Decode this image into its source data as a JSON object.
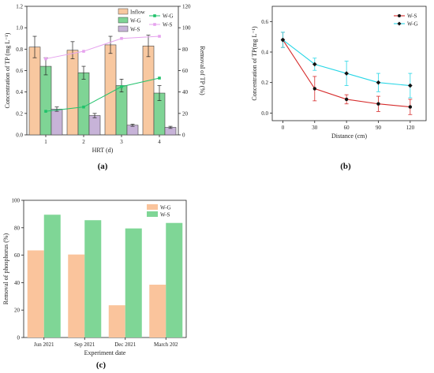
{
  "panel_labels": [
    "(a)",
    "(b)",
    "(c)"
  ],
  "colors": {
    "inflow": "#f8c8a0",
    "wg": "#7fd495",
    "ws": "#c7b3d8",
    "line_wg": "#21c26b",
    "line_ws": "#e6a3ee",
    "b_ws": "#d62b2b",
    "b_wg": "#27d6e6",
    "c_wg": "#fac49c",
    "c_ws": "#7fd696"
  },
  "chart_data": [
    {
      "type": "bar",
      "panel": "(a)",
      "title": "",
      "xlabel": "HRT (d)",
      "ylabel": "Concentration of TP (mg L⁻¹)",
      "y2label": "Removal of TP (%)",
      "categories": [
        "1",
        "2",
        "3",
        "4"
      ],
      "ylim": [
        0,
        1.2
      ],
      "yticks": [
        "0.0",
        "0.2",
        "0.4",
        "0.6",
        "0.8",
        "1.0",
        "1.2"
      ],
      "y2lim": [
        0,
        120
      ],
      "y2ticks": [
        "0",
        "20",
        "40",
        "60",
        "80",
        "100",
        "120"
      ],
      "series": [
        {
          "name": "Inflow",
          "values": [
            0.82,
            0.79,
            0.84,
            0.83
          ],
          "errors": [
            0.1,
            0.08,
            0.08,
            0.1
          ]
        },
        {
          "name": "W-G",
          "values": [
            0.64,
            0.58,
            0.46,
            0.39
          ],
          "errors": [
            0.08,
            0.06,
            0.06,
            0.07
          ]
        },
        {
          "name": "W-S",
          "values": [
            0.24,
            0.18,
            0.09,
            0.07
          ],
          "errors": [
            0.02,
            0.02,
            0.01,
            0.01
          ]
        }
      ],
      "lines": [
        {
          "name": "W-G",
          "values": [
            22,
            26,
            45,
            53
          ]
        },
        {
          "name": "W-S",
          "values": [
            71,
            78,
            90,
            92
          ]
        }
      ],
      "legend": "top-right"
    },
    {
      "type": "line",
      "panel": "(b)",
      "title": "",
      "xlabel": "Distance (cm)",
      "ylabel": "Concentration of TP(mg L⁻¹)",
      "x": [
        0,
        30,
        60,
        90,
        120
      ],
      "xticks": [
        "0",
        "30",
        "60",
        "90",
        "120"
      ],
      "xlim": [
        -10,
        135
      ],
      "ylim": [
        -0.05,
        0.7
      ],
      "yticks": [
        "0.0",
        "0.2",
        "0.4",
        "0.6"
      ],
      "series": [
        {
          "name": "W-S",
          "values": [
            0.48,
            0.16,
            0.09,
            0.06,
            0.04
          ],
          "errors": [
            0.05,
            0.08,
            0.03,
            0.05,
            0.05
          ]
        },
        {
          "name": "W-G",
          "values": [
            0.48,
            0.32,
            0.26,
            0.2,
            0.18
          ],
          "errors": [
            0.05,
            0.04,
            0.08,
            0.06,
            0.08
          ]
        }
      ],
      "legend": "top-right"
    },
    {
      "type": "bar",
      "panel": "(c)",
      "title": "",
      "xlabel": "Experiment date",
      "ylabel": "Removal of phosphorus (%)",
      "categories": [
        "Jun 2021",
        "Sep 2021",
        "Dec 2021",
        "March 202"
      ],
      "ylim": [
        0,
        100
      ],
      "yticks": [
        "0",
        "20",
        "40",
        "60",
        "80",
        "100"
      ],
      "series": [
        {
          "name": "W-G",
          "values": [
            63.5,
            60.5,
            23.5,
            38.5
          ]
        },
        {
          "name": "W-S",
          "values": [
            89.5,
            85.5,
            79.5,
            83.5
          ]
        }
      ],
      "legend": "top-right"
    }
  ]
}
